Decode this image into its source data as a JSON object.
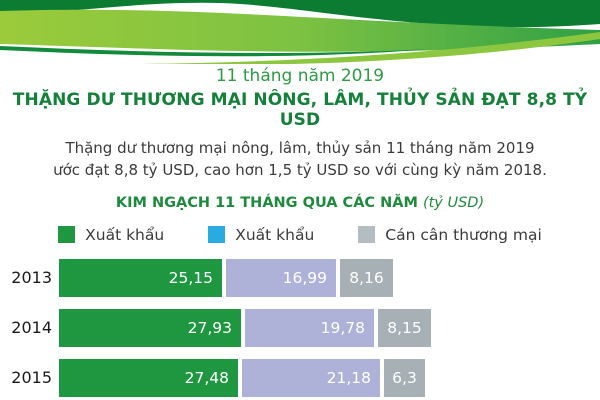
{
  "header": {
    "period_label": "11 tháng năm 2019",
    "title": "THẶNG DƯ THƯƠNG MẠI NÔNG, LÂM, THỦY SẢN ĐẠT 8,8 TỶ USD",
    "subtitle_line1": "Thặng dư thương mại nông, lâm, thủy sản 11 tháng năm 2019",
    "subtitle_line2": "ước đạt 8,8 tỷ USD, cao hơn 1,5 tỷ USD so với cùng kỳ năm 2018."
  },
  "chart": {
    "title": "KIM NGẠCH 11 THÁNG QUA CÁC NĂM",
    "unit_label": "(tỷ USD)",
    "legend": [
      {
        "label": "Xuất khẩu",
        "color": "#1F9640"
      },
      {
        "label": "Xuất khẩu",
        "color": "#29ABE2"
      },
      {
        "label": "Cán cân thương mại",
        "color": "#B3BDC2"
      }
    ]
  },
  "chart_data": {
    "type": "bar",
    "orientation": "horizontal",
    "title": "KIM NGẠCH 11 THÁNG QUA CÁC NĂM (tỷ USD)",
    "unit": "tỷ USD",
    "categories": [
      "2013",
      "2014",
      "2015"
    ],
    "series": [
      {
        "name": "Xuất khẩu",
        "color": "#1F9640",
        "values": [
          25.15,
          27.93,
          27.48
        ],
        "labels": [
          "25,15",
          "27,93",
          "27,48"
        ]
      },
      {
        "name": "Xuất khẩu",
        "color": "#AEB2D8",
        "values": [
          16.99,
          19.78,
          21.18
        ],
        "labels": [
          "16,99",
          "19,78",
          "21,18"
        ]
      },
      {
        "name": "Cán cân thương mại",
        "color": "#A7B0B4",
        "values": [
          8.16,
          8.15,
          6.3
        ],
        "labels": [
          "8,16",
          "8,15",
          "6,3"
        ]
      }
    ],
    "legend_position": "top",
    "grid": false,
    "xlim": [
      0,
      92
    ]
  },
  "decor": {
    "wave_dark": "#0D7C33",
    "wave_light_start": "#9BCB3B",
    "wave_light_mid": "#7DC242",
    "wave_light_end": "#2FA046",
    "wave_swoosh": "#8DC63F",
    "wave_edge": "#128A3C"
  }
}
